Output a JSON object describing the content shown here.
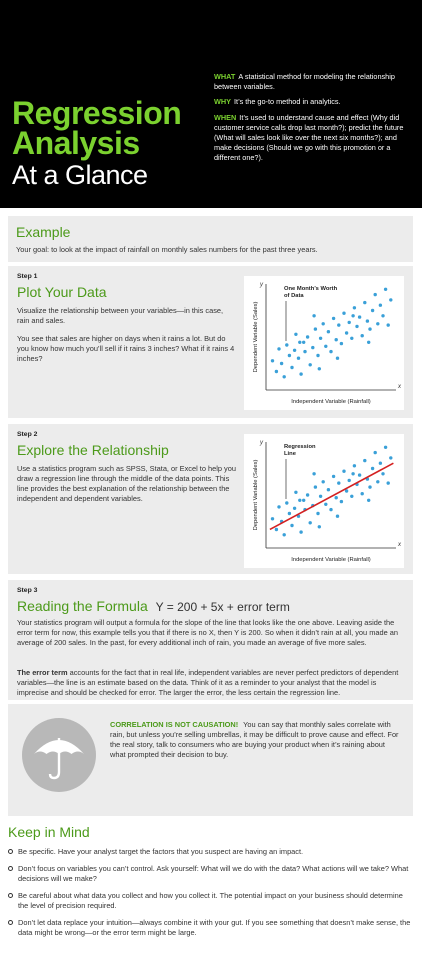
{
  "header": {
    "title_line1": "Regression",
    "title_line2": "Analysis",
    "title_line3": "At a Glance",
    "what_label": "WHAT",
    "what_text": "A statistical method for modeling the relationship between variables.",
    "why_label": "WHY",
    "why_text": "It’s the go-to method in analytics.",
    "when_label": "WHEN",
    "when_text": "It’s used to understand cause and effect (Why did customer service calls drop last month?); predict the future (What will sales look like over the next six months?); and make decisions (Should we go with this promotion or a different one?)."
  },
  "example": {
    "heading": "Example",
    "text": "Your goal: to look at the impact of rainfall on monthly sales numbers for the past three years."
  },
  "step1": {
    "label": "Step 1",
    "heading": "Plot Your Data",
    "p1": "Visualize the relationship between your variables—in this case, rain and sales.",
    "p2": "You see that sales are higher on days when it rains a lot. But do you know how much you’ll sell if it rains 3 inches? What if it rains 4 inches?"
  },
  "step2": {
    "label": "Step 2",
    "heading": "Explore the Relationship",
    "p1": "Use a statistics program such as SPSS, Stata, or Excel to help you draw a regression line through the middle of the data points. This line provides the best explanation of the relationship between the independent and dependent variables."
  },
  "step3": {
    "label": "Step 3",
    "heading": "Reading the Formula",
    "formula": "Y = 200 + 5x + error term",
    "p1": "Your statistics program will output a formula for the slope of the line that looks like the one above. Leaving aside the error term for now, this example tells you that if there is no X, then Y is 200. So when it didn’t rain at all, you made an average of 200 sales. In the past, for every additional inch of rain, you made an average of five more sales.",
    "p2_bold": "The error term",
    "p2": "accounts for the fact that in real life, independent variables are never perfect predictors of dependent variables—the line is an estimate based on the data. Think of it as a reminder to your analyst that the model is imprecise and should be checked for error. The larger the error, the less certain the regression line."
  },
  "correlation": {
    "label": "CORRELATION IS NOT CAUSATION!",
    "text": "You can say that monthly sales correlate with rain, but unless you’re selling umbrellas, it may be difficult to prove cause and effect. For the real story, talk to consumers who are buying your product when it’s raining about what prompted their decision to buy."
  },
  "keep": {
    "heading": "Keep in Mind",
    "items": [
      "Be specific. Have your analyst target the factors that you suspect are having an impact.",
      "Don’t focus on variables you can’t control. Ask yourself: What will we do with the data? What actions will we take? What decisions will we make?",
      "Be careful about what data you collect and how you collect it. The potential impact on your business should determine the level of precision required.",
      "Don’t let data replace your intuition—always combine it with your gut. If you see something that doesn’t make sense, the data might be wrong—or the error term might be large."
    ]
  },
  "chart_data": [
    {
      "type": "scatter",
      "xlabel": "Independent Variable (Rainfall)",
      "ylabel": "Dependent Variable (Sales)",
      "x_axis_letter": "x",
      "y_axis_letter": "y",
      "annotation": "One Month’s Worth of Data",
      "points": [
        [
          0.5,
          2.2
        ],
        [
          0.8,
          1.4
        ],
        [
          1.0,
          3.1
        ],
        [
          1.2,
          2.0
        ],
        [
          1.4,
          1.0
        ],
        [
          1.6,
          3.4
        ],
        [
          1.8,
          2.6
        ],
        [
          2.0,
          1.7
        ],
        [
          2.2,
          3.0
        ],
        [
          2.3,
          4.2
        ],
        [
          2.5,
          2.4
        ],
        [
          2.7,
          1.2
        ],
        [
          2.9,
          3.6
        ],
        [
          3.0,
          2.9
        ],
        [
          3.2,
          4.0
        ],
        [
          3.4,
          1.9
        ],
        [
          3.6,
          3.2
        ],
        [
          3.8,
          4.6
        ],
        [
          4.0,
          2.6
        ],
        [
          4.2,
          3.9
        ],
        [
          4.4,
          5.0
        ],
        [
          4.6,
          3.3
        ],
        [
          4.8,
          4.4
        ],
        [
          5.0,
          2.9
        ],
        [
          5.2,
          5.4
        ],
        [
          5.4,
          3.8
        ],
        [
          5.6,
          4.9
        ],
        [
          5.8,
          3.5
        ],
        [
          6.0,
          5.8
        ],
        [
          6.2,
          4.3
        ],
        [
          6.4,
          5.1
        ],
        [
          6.6,
          3.9
        ],
        [
          6.8,
          6.2
        ],
        [
          7.0,
          4.8
        ],
        [
          7.2,
          5.5
        ],
        [
          7.4,
          4.1
        ],
        [
          7.6,
          6.6
        ],
        [
          7.8,
          5.2
        ],
        [
          8.0,
          4.6
        ],
        [
          8.2,
          6.0
        ],
        [
          8.4,
          7.2
        ],
        [
          8.6,
          5.0
        ],
        [
          8.8,
          6.4
        ],
        [
          9.0,
          5.6
        ],
        [
          9.2,
          7.6
        ],
        [
          9.4,
          4.9
        ],
        [
          9.6,
          6.8
        ],
        [
          2.6,
          3.6
        ],
        [
          4.1,
          1.6
        ],
        [
          5.5,
          2.4
        ],
        [
          6.7,
          5.6
        ],
        [
          7.9,
          3.6
        ],
        [
          3.7,
          5.6
        ]
      ],
      "xlim": [
        0,
        10
      ],
      "ylim": [
        0,
        8
      ]
    },
    {
      "type": "scatter",
      "xlabel": "Independent Variable (Rainfall)",
      "ylabel": "Dependent Variable (Sales)",
      "x_axis_letter": "x",
      "y_axis_letter": "y",
      "annotation": "Regression Line",
      "points": [
        [
          0.5,
          2.2
        ],
        [
          0.8,
          1.4
        ],
        [
          1.0,
          3.1
        ],
        [
          1.2,
          2.0
        ],
        [
          1.4,
          1.0
        ],
        [
          1.6,
          3.4
        ],
        [
          1.8,
          2.6
        ],
        [
          2.0,
          1.7
        ],
        [
          2.2,
          3.0
        ],
        [
          2.3,
          4.2
        ],
        [
          2.5,
          2.4
        ],
        [
          2.7,
          1.2
        ],
        [
          2.9,
          3.6
        ],
        [
          3.0,
          2.9
        ],
        [
          3.2,
          4.0
        ],
        [
          3.4,
          1.9
        ],
        [
          3.6,
          3.2
        ],
        [
          3.8,
          4.6
        ],
        [
          4.0,
          2.6
        ],
        [
          4.2,
          3.9
        ],
        [
          4.4,
          5.0
        ],
        [
          4.6,
          3.3
        ],
        [
          4.8,
          4.4
        ],
        [
          5.0,
          2.9
        ],
        [
          5.2,
          5.4
        ],
        [
          5.4,
          3.8
        ],
        [
          5.6,
          4.9
        ],
        [
          5.8,
          3.5
        ],
        [
          6.0,
          5.8
        ],
        [
          6.2,
          4.3
        ],
        [
          6.4,
          5.1
        ],
        [
          6.6,
          3.9
        ],
        [
          6.8,
          6.2
        ],
        [
          7.0,
          4.8
        ],
        [
          7.2,
          5.5
        ],
        [
          7.4,
          4.1
        ],
        [
          7.6,
          6.6
        ],
        [
          7.8,
          5.2
        ],
        [
          8.0,
          4.6
        ],
        [
          8.2,
          6.0
        ],
        [
          8.4,
          7.2
        ],
        [
          8.6,
          5.0
        ],
        [
          8.8,
          6.4
        ],
        [
          9.0,
          5.6
        ],
        [
          9.2,
          7.6
        ],
        [
          9.4,
          4.9
        ],
        [
          9.6,
          6.8
        ],
        [
          2.6,
          3.6
        ],
        [
          4.1,
          1.6
        ],
        [
          5.5,
          2.4
        ],
        [
          6.7,
          5.6
        ],
        [
          7.9,
          3.6
        ],
        [
          3.7,
          5.6
        ]
      ],
      "regression_line": [
        [
          0.3,
          1.4
        ],
        [
          9.8,
          6.4
        ]
      ],
      "line_color": "#d42020",
      "xlim": [
        0,
        10
      ],
      "ylim": [
        0,
        8
      ]
    }
  ],
  "colors": {
    "accent_green": "#7bd12f",
    "heading_green": "#4c9a1a",
    "point_blue": "#3aa0d8",
    "line_red": "#d42020"
  },
  "icons": {
    "umbrella": "umbrella-icon",
    "bullet": "bullet-circle-icon"
  }
}
